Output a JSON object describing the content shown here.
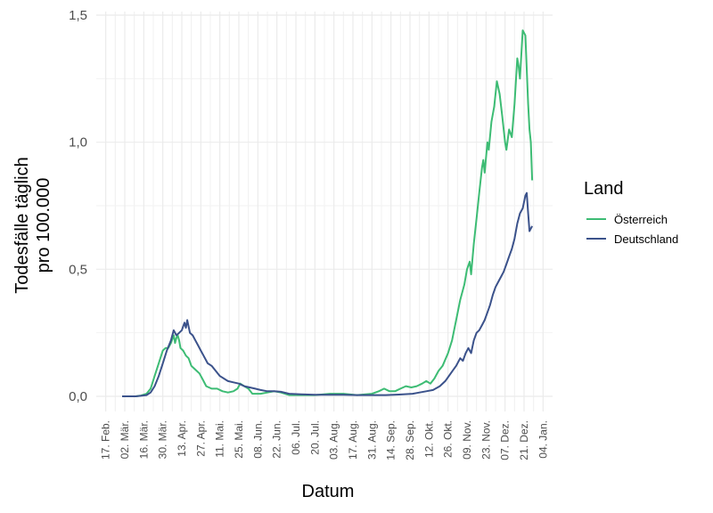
{
  "chart_data": {
    "type": "line",
    "xlabel": "Datum",
    "ylabel_lines": [
      "Todesfälle täglich",
      "pro 100.000"
    ],
    "ylim": [
      0,
      1.5
    ],
    "yticks": [
      {
        "value": 0.0,
        "label": "0,0"
      },
      {
        "value": 0.5,
        "label": "0,5"
      },
      {
        "value": 1.0,
        "label": "1,0"
      },
      {
        "value": 1.5,
        "label": "1,5"
      }
    ],
    "xlim": [
      "2020-02-10",
      "2021-01-11"
    ],
    "xticks": [
      {
        "date": "2020-02-17",
        "label": "17. Feb."
      },
      {
        "date": "2020-03-02",
        "label": "02. Mär."
      },
      {
        "date": "2020-03-16",
        "label": "16. Mär."
      },
      {
        "date": "2020-03-30",
        "label": "30. Mär."
      },
      {
        "date": "2020-04-13",
        "label": "13. Apr."
      },
      {
        "date": "2020-04-27",
        "label": "27. Apr."
      },
      {
        "date": "2020-05-11",
        "label": "11. Mai."
      },
      {
        "date": "2020-05-25",
        "label": "25. Mai."
      },
      {
        "date": "2020-06-08",
        "label": "08. Jun."
      },
      {
        "date": "2020-06-22",
        "label": "22. Jun."
      },
      {
        "date": "2020-07-06",
        "label": "06. Jul."
      },
      {
        "date": "2020-07-20",
        "label": "20. Jul."
      },
      {
        "date": "2020-08-03",
        "label": "03. Aug."
      },
      {
        "date": "2020-08-17",
        "label": "17. Aug."
      },
      {
        "date": "2020-08-31",
        "label": "31. Aug."
      },
      {
        "date": "2020-09-14",
        "label": "14. Sep."
      },
      {
        "date": "2020-09-28",
        "label": "28. Sep."
      },
      {
        "date": "2020-10-12",
        "label": "12. Okt."
      },
      {
        "date": "2020-10-26",
        "label": "26. Okt."
      },
      {
        "date": "2020-11-09",
        "label": "09. Nov."
      },
      {
        "date": "2020-11-23",
        "label": "23. Nov."
      },
      {
        "date": "2020-12-07",
        "label": "07. Dez."
      },
      {
        "date": "2020-12-21",
        "label": "21. Dez."
      },
      {
        "date": "2021-01-04",
        "label": "04. Jan."
      }
    ],
    "grid": true,
    "legend": {
      "title": "Land",
      "position": "right"
    },
    "series": [
      {
        "name": "Österreich",
        "color": "#3dbc74",
        "points": [
          [
            "2020-02-29",
            0.0
          ],
          [
            "2020-03-05",
            0.0
          ],
          [
            "2020-03-10",
            0.0
          ],
          [
            "2020-03-14",
            0.003
          ],
          [
            "2020-03-18",
            0.01
          ],
          [
            "2020-03-21",
            0.03
          ],
          [
            "2020-03-24",
            0.08
          ],
          [
            "2020-03-27",
            0.13
          ],
          [
            "2020-03-30",
            0.18
          ],
          [
            "2020-04-01",
            0.19
          ],
          [
            "2020-04-03",
            0.19
          ],
          [
            "2020-04-05",
            0.21
          ],
          [
            "2020-04-07",
            0.24
          ],
          [
            "2020-04-08",
            0.21
          ],
          [
            "2020-04-09",
            0.23
          ],
          [
            "2020-04-10",
            0.24
          ],
          [
            "2020-04-11",
            0.22
          ],
          [
            "2020-04-12",
            0.19
          ],
          [
            "2020-04-14",
            0.18
          ],
          [
            "2020-04-16",
            0.16
          ],
          [
            "2020-04-18",
            0.15
          ],
          [
            "2020-04-20",
            0.12
          ],
          [
            "2020-04-22",
            0.11
          ],
          [
            "2020-04-24",
            0.1
          ],
          [
            "2020-04-26",
            0.09
          ],
          [
            "2020-04-28",
            0.07
          ],
          [
            "2020-05-01",
            0.04
          ],
          [
            "2020-05-05",
            0.03
          ],
          [
            "2020-05-09",
            0.03
          ],
          [
            "2020-05-13",
            0.02
          ],
          [
            "2020-05-17",
            0.015
          ],
          [
            "2020-05-21",
            0.02
          ],
          [
            "2020-05-24",
            0.03
          ],
          [
            "2020-05-26",
            0.05
          ],
          [
            "2020-05-29",
            0.04
          ],
          [
            "2020-06-01",
            0.03
          ],
          [
            "2020-06-04",
            0.01
          ],
          [
            "2020-06-10",
            0.01
          ],
          [
            "2020-06-15",
            0.015
          ],
          [
            "2020-06-20",
            0.02
          ],
          [
            "2020-06-25",
            0.015
          ],
          [
            "2020-07-01",
            0.005
          ],
          [
            "2020-07-10",
            0.005
          ],
          [
            "2020-07-20",
            0.005
          ],
          [
            "2020-07-31",
            0.01
          ],
          [
            "2020-08-10",
            0.01
          ],
          [
            "2020-08-20",
            0.005
          ],
          [
            "2020-08-31",
            0.01
          ],
          [
            "2020-09-05",
            0.02
          ],
          [
            "2020-09-09",
            0.03
          ],
          [
            "2020-09-13",
            0.02
          ],
          [
            "2020-09-17",
            0.02
          ],
          [
            "2020-09-21",
            0.03
          ],
          [
            "2020-09-25",
            0.04
          ],
          [
            "2020-09-29",
            0.035
          ],
          [
            "2020-10-03",
            0.04
          ],
          [
            "2020-10-07",
            0.05
          ],
          [
            "2020-10-10",
            0.06
          ],
          [
            "2020-10-13",
            0.05
          ],
          [
            "2020-10-16",
            0.07
          ],
          [
            "2020-10-19",
            0.1
          ],
          [
            "2020-10-22",
            0.12
          ],
          [
            "2020-10-26",
            0.17
          ],
          [
            "2020-10-29",
            0.22
          ],
          [
            "2020-11-01",
            0.3
          ],
          [
            "2020-11-04",
            0.38
          ],
          [
            "2020-11-07",
            0.44
          ],
          [
            "2020-11-09",
            0.5
          ],
          [
            "2020-11-11",
            0.53
          ],
          [
            "2020-11-12",
            0.48
          ],
          [
            "2020-11-14",
            0.6
          ],
          [
            "2020-11-16",
            0.7
          ],
          [
            "2020-11-18",
            0.8
          ],
          [
            "2020-11-20",
            0.9
          ],
          [
            "2020-11-21",
            0.93
          ],
          [
            "2020-11-22",
            0.88
          ],
          [
            "2020-11-24",
            1.0
          ],
          [
            "2020-11-25",
            0.97
          ],
          [
            "2020-11-27",
            1.08
          ],
          [
            "2020-11-29",
            1.14
          ],
          [
            "2020-12-01",
            1.24
          ],
          [
            "2020-12-03",
            1.19
          ],
          [
            "2020-12-05",
            1.1
          ],
          [
            "2020-12-07",
            1.0
          ],
          [
            "2020-12-08",
            0.97
          ],
          [
            "2020-12-10",
            1.05
          ],
          [
            "2020-12-12",
            1.02
          ],
          [
            "2020-12-14",
            1.15
          ],
          [
            "2020-12-16",
            1.33
          ],
          [
            "2020-12-17",
            1.3
          ],
          [
            "2020-12-18",
            1.25
          ],
          [
            "2020-12-20",
            1.44
          ],
          [
            "2020-12-21",
            1.43
          ],
          [
            "2020-12-22",
            1.42
          ],
          [
            "2020-12-24",
            1.15
          ],
          [
            "2020-12-25",
            1.05
          ],
          [
            "2020-12-26",
            1.0
          ],
          [
            "2020-12-27",
            0.85
          ]
        ]
      },
      {
        "name": "Deutschland",
        "color": "#3b528b",
        "points": [
          [
            "2020-02-29",
            0.0
          ],
          [
            "2020-03-05",
            0.0
          ],
          [
            "2020-03-10",
            0.0
          ],
          [
            "2020-03-14",
            0.002
          ],
          [
            "2020-03-18",
            0.005
          ],
          [
            "2020-03-21",
            0.015
          ],
          [
            "2020-03-24",
            0.04
          ],
          [
            "2020-03-27",
            0.08
          ],
          [
            "2020-03-30",
            0.13
          ],
          [
            "2020-04-02",
            0.18
          ],
          [
            "2020-04-05",
            0.22
          ],
          [
            "2020-04-07",
            0.26
          ],
          [
            "2020-04-09",
            0.24
          ],
          [
            "2020-04-11",
            0.25
          ],
          [
            "2020-04-13",
            0.26
          ],
          [
            "2020-04-15",
            0.29
          ],
          [
            "2020-04-16",
            0.27
          ],
          [
            "2020-04-17",
            0.3
          ],
          [
            "2020-04-19",
            0.25
          ],
          [
            "2020-04-21",
            0.24
          ],
          [
            "2020-04-23",
            0.22
          ],
          [
            "2020-04-25",
            0.2
          ],
          [
            "2020-04-27",
            0.18
          ],
          [
            "2020-04-29",
            0.16
          ],
          [
            "2020-05-02",
            0.13
          ],
          [
            "2020-05-05",
            0.12
          ],
          [
            "2020-05-08",
            0.1
          ],
          [
            "2020-05-11",
            0.08
          ],
          [
            "2020-05-14",
            0.07
          ],
          [
            "2020-05-17",
            0.06
          ],
          [
            "2020-05-21",
            0.055
          ],
          [
            "2020-05-25",
            0.05
          ],
          [
            "2020-05-29",
            0.04
          ],
          [
            "2020-06-02",
            0.035
          ],
          [
            "2020-06-06",
            0.03
          ],
          [
            "2020-06-10",
            0.025
          ],
          [
            "2020-06-15",
            0.02
          ],
          [
            "2020-06-20",
            0.02
          ],
          [
            "2020-06-25",
            0.018
          ],
          [
            "2020-07-01",
            0.01
          ],
          [
            "2020-07-10",
            0.008
          ],
          [
            "2020-07-20",
            0.006
          ],
          [
            "2020-07-31",
            0.006
          ],
          [
            "2020-08-10",
            0.006
          ],
          [
            "2020-08-20",
            0.005
          ],
          [
            "2020-08-31",
            0.005
          ],
          [
            "2020-09-10",
            0.005
          ],
          [
            "2020-09-20",
            0.007
          ],
          [
            "2020-09-30",
            0.01
          ],
          [
            "2020-10-05",
            0.015
          ],
          [
            "2020-10-10",
            0.02
          ],
          [
            "2020-10-15",
            0.025
          ],
          [
            "2020-10-20",
            0.04
          ],
          [
            "2020-10-24",
            0.06
          ],
          [
            "2020-10-28",
            0.09
          ],
          [
            "2020-11-01",
            0.12
          ],
          [
            "2020-11-04",
            0.15
          ],
          [
            "2020-11-06",
            0.14
          ],
          [
            "2020-11-08",
            0.17
          ],
          [
            "2020-11-10",
            0.19
          ],
          [
            "2020-11-12",
            0.17
          ],
          [
            "2020-11-14",
            0.22
          ],
          [
            "2020-11-16",
            0.25
          ],
          [
            "2020-11-18",
            0.26
          ],
          [
            "2020-11-20",
            0.28
          ],
          [
            "2020-11-22",
            0.3
          ],
          [
            "2020-11-24",
            0.33
          ],
          [
            "2020-11-26",
            0.36
          ],
          [
            "2020-11-28",
            0.4
          ],
          [
            "2020-11-30",
            0.43
          ],
          [
            "2020-12-02",
            0.45
          ],
          [
            "2020-12-04",
            0.47
          ],
          [
            "2020-12-06",
            0.49
          ],
          [
            "2020-12-08",
            0.52
          ],
          [
            "2020-12-10",
            0.55
          ],
          [
            "2020-12-12",
            0.58
          ],
          [
            "2020-12-14",
            0.62
          ],
          [
            "2020-12-16",
            0.68
          ],
          [
            "2020-12-18",
            0.72
          ],
          [
            "2020-12-20",
            0.74
          ],
          [
            "2020-12-22",
            0.79
          ],
          [
            "2020-12-23",
            0.8
          ],
          [
            "2020-12-24",
            0.72
          ],
          [
            "2020-12-25",
            0.65
          ],
          [
            "2020-12-26",
            0.66
          ],
          [
            "2020-12-27",
            0.67
          ]
        ]
      }
    ]
  }
}
